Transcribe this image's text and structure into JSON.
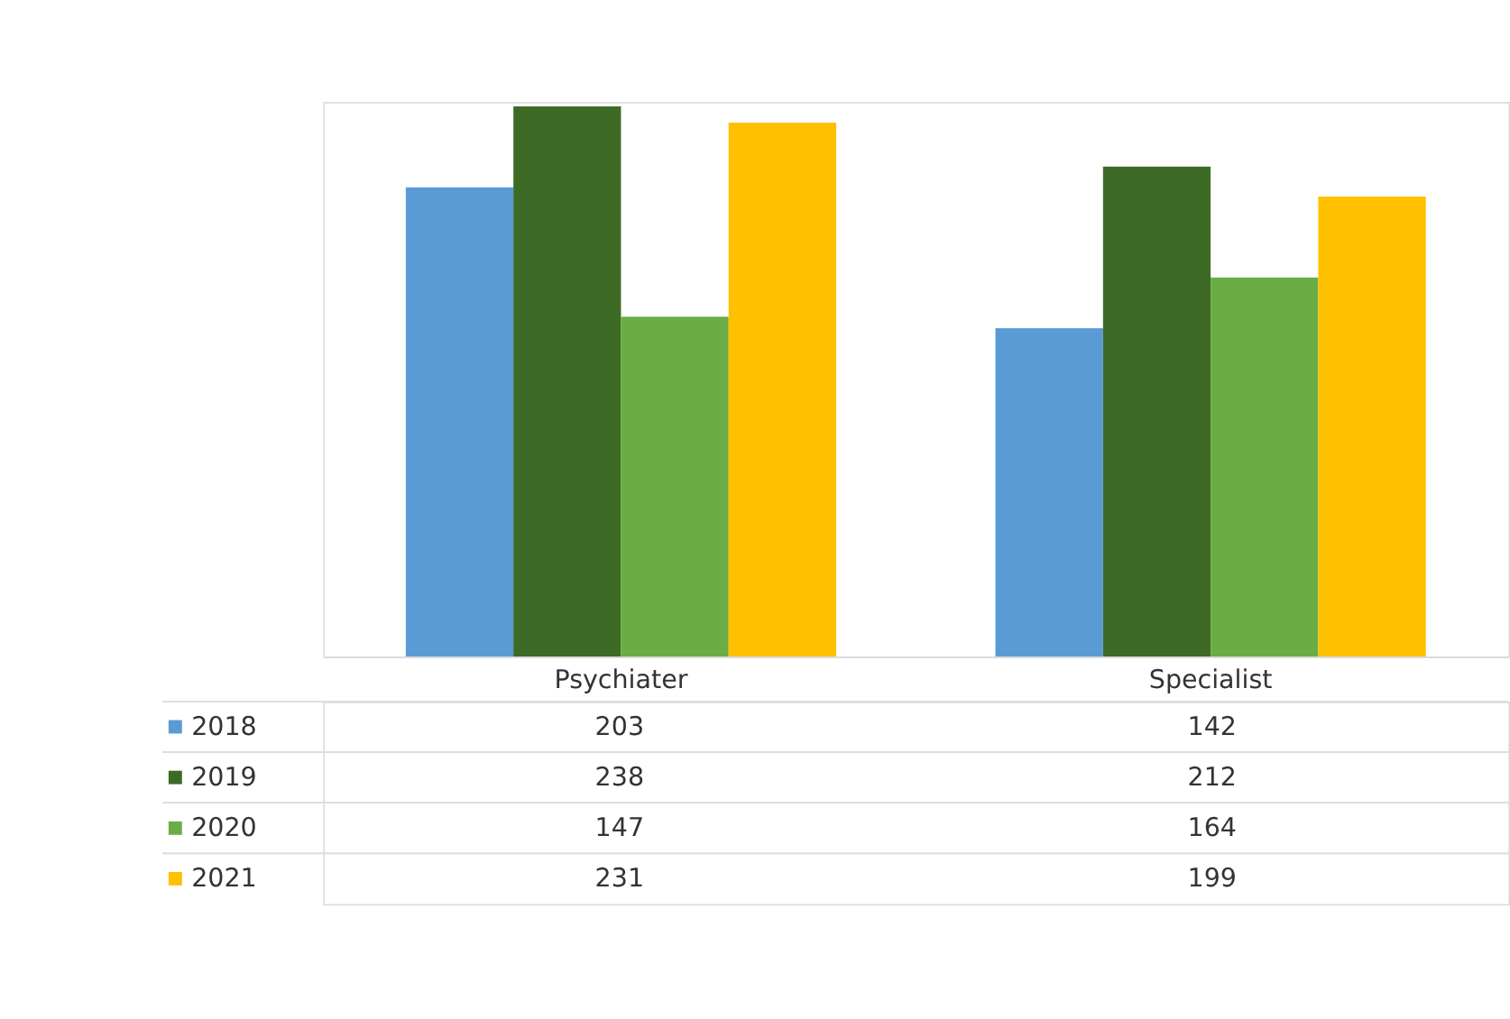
{
  "chart_data": {
    "type": "bar",
    "categories": [
      "Psychiater",
      "Specialist"
    ],
    "series": [
      {
        "name": "2018",
        "color": "#5b9bd5",
        "values": [
          203,
          142
        ]
      },
      {
        "name": "2019",
        "color": "#3d6b26",
        "values": [
          238,
          212
        ]
      },
      {
        "name": "2020",
        "color": "#6aad45",
        "values": [
          147,
          164
        ]
      },
      {
        "name": "2021",
        "color": "#ffc000",
        "values": [
          231,
          199
        ]
      }
    ],
    "data_labels": true,
    "legend": "bottom",
    "grid": false
  }
}
